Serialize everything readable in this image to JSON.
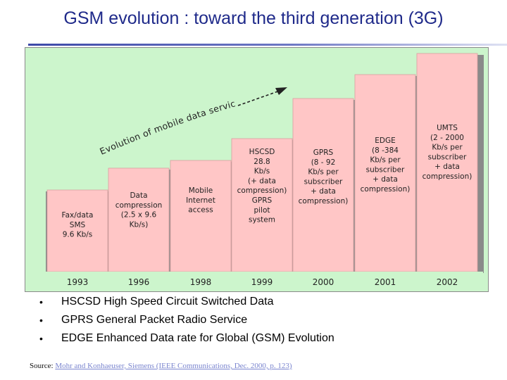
{
  "slide": {
    "title": "GSM evolution : toward the third generation (3G)"
  },
  "diagram": {
    "background": "#ccf5cc",
    "bar_fill": "#ffc6c6",
    "evolution_label": "Evolution of mobile data services",
    "steps": [
      {
        "year": "1993",
        "lines": [
          "Fax/data",
          "SMS",
          "9.6 Kb/s"
        ]
      },
      {
        "year": "1996",
        "lines": [
          "Data",
          "compression",
          "(2.5 x 9.6",
          "Kb/s)"
        ]
      },
      {
        "year": "1998",
        "lines": [
          "Mobile",
          "Internet",
          "access"
        ]
      },
      {
        "year": "1999",
        "lines": [
          "HSCSD",
          "28.8",
          "Kb/s",
          "(+ data",
          "compression)",
          "GPRS",
          "pilot",
          "system"
        ]
      },
      {
        "year": "2000",
        "lines": [
          "GPRS",
          "(8 - 92",
          "Kb/s per",
          "subscriber",
          "+ data",
          "compression)"
        ]
      },
      {
        "year": "2001",
        "lines": [
          "EDGE",
          "(8 -384",
          "Kb/s per",
          "subscriber",
          "+ data",
          "compression)"
        ]
      },
      {
        "year": "2002",
        "lines": [
          "UMTS",
          "(2 - 2000",
          "Kb/s per",
          "subscriber",
          "+ data",
          "compression)"
        ]
      }
    ]
  },
  "bullets": {
    "items": [
      "HSCSD High Speed Circuit Switched Data",
      "GPRS General Packet Radio Service",
      "EDGE Enhanced Data rate for Global (GSM) Evolution"
    ],
    "marker": "•"
  },
  "source": {
    "prefix": "Source:",
    "link_text": "Mohr and Konhaeuser, Siemens (IEEE Communications, Dec. 2000, p. 123)"
  }
}
